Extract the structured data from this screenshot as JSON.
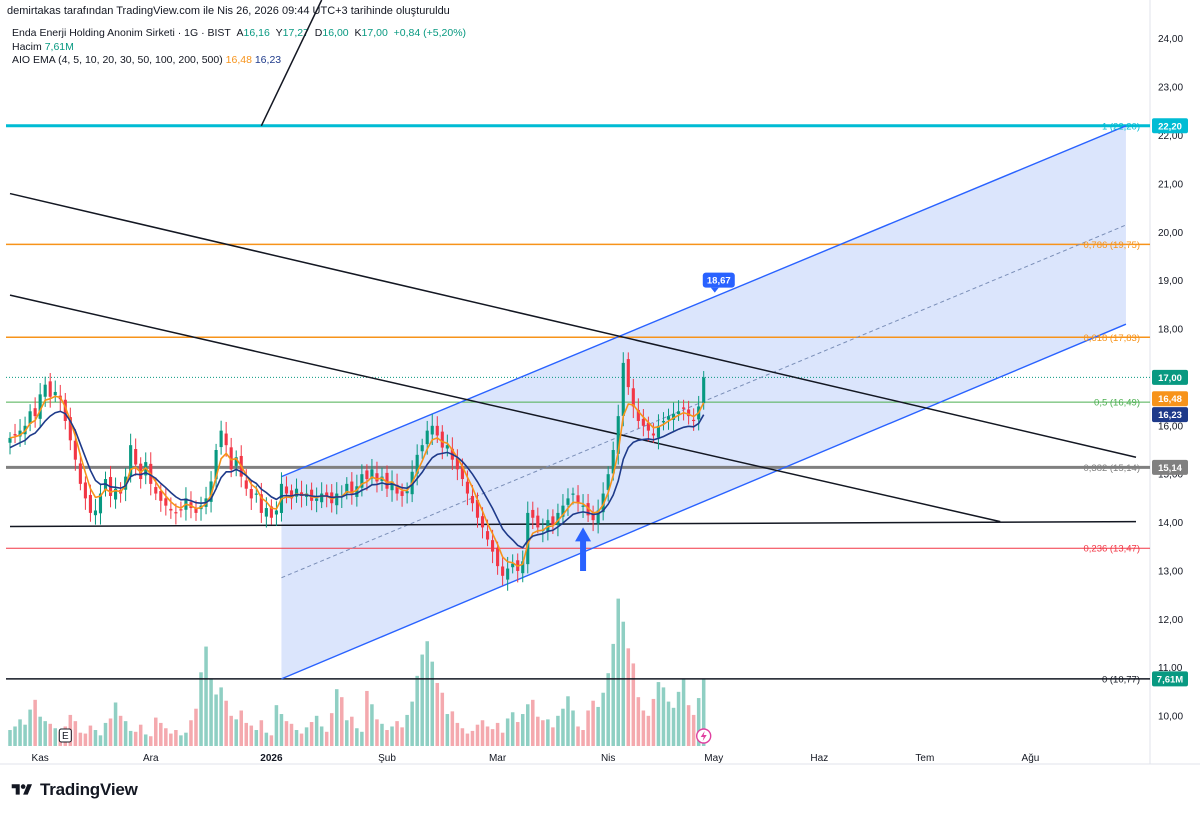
{
  "attribution": "demirtakas tarafından TradingView.com ile Nis 26, 2026 09:44 UTC+3 tarihinde oluşturuldu",
  "legend": {
    "symbol": "Enda Enerji Holding Anonim Sirketi · 1G · BIST",
    "open_label": "A",
    "open_value": "16,16",
    "high_label": "Y",
    "high_value": "17,27",
    "low_label": "D",
    "low_value": "16,00",
    "close_label": "K",
    "close_value": "17,00",
    "change": "+0,84 (+5,20%)",
    "volume_label": "Hacim",
    "volume_value": "7,61M",
    "ema_label": "AIO EMA (4, 5, 10, 20, 30, 50, 100, 200, 500)",
    "ema_fast": "16,48",
    "ema_slow": "16,23"
  },
  "brand": "TradingView",
  "colors": {
    "up": "#089981",
    "down": "#f23645",
    "up_vol": "#8fcfc3",
    "down_vol": "#f4a9ae",
    "channel": "#2962ff",
    "channel_fill": "#d5e0fc",
    "fib_cyan": "#00bcd4",
    "fib_orange": "#f7931a",
    "fib_green": "#4caf50",
    "fib_gray": "#808080",
    "fib_red": "#f23645",
    "fib_black": "#131722",
    "ema_fast": "#f7931a",
    "ema_slow": "#1e3a8a"
  },
  "chart_data": {
    "type": "candlestick",
    "ylim": [
      9.3,
      24.8
    ],
    "x_range": [
      0,
      224
    ],
    "price_ticks": [
      "24,00",
      "23,00",
      "22,00",
      "21,00",
      "20,00",
      "19,00",
      "18,00",
      "16,00",
      "15,00",
      "14,00",
      "13,00",
      "12,00",
      "11,00",
      "10,00"
    ],
    "price_tick_values": [
      24,
      23,
      22,
      21,
      20,
      19,
      18,
      16,
      15,
      14,
      13,
      12,
      11,
      10
    ],
    "x_labels": [
      {
        "label": "Kas",
        "i": 6
      },
      {
        "label": "Ara",
        "i": 28
      },
      {
        "label": "2026",
        "i": 52
      },
      {
        "label": "Şub",
        "i": 75
      },
      {
        "label": "Mar",
        "i": 97
      },
      {
        "label": "Nis",
        "i": 119
      },
      {
        "label": "May",
        "i": 140
      },
      {
        "label": "Haz",
        "i": 161
      },
      {
        "label": "Tem",
        "i": 182
      },
      {
        "label": "Ağu",
        "i": 203
      }
    ],
    "price_badges": [
      {
        "value": "22,20",
        "price": 22.2,
        "bg": "#00bcd4"
      },
      {
        "value": "17,00",
        "price": 17.0,
        "bg": "#089981"
      },
      {
        "value": "16,48",
        "price": 16.56,
        "bg": "#f7931a"
      },
      {
        "value": "16,23",
        "price": 16.23,
        "bg": "#1e3a8a"
      },
      {
        "value": "15,14",
        "price": 15.14,
        "bg": "#808080"
      },
      {
        "value": "7,61M",
        "price": 10.77,
        "bg": "#089981"
      }
    ],
    "fib_levels": [
      {
        "label": "1 (22,20)",
        "price": 22.2,
        "color": "#00bcd4",
        "width": 3
      },
      {
        "label": "0,786 (19,75)",
        "price": 19.75,
        "color": "#f7931a",
        "width": 1.5
      },
      {
        "label": "0,618 (17,83)",
        "price": 17.83,
        "color": "#f7931a",
        "width": 1.5
      },
      {
        "label": "0,5 (16,49)",
        "price": 16.49,
        "color": "#4caf50",
        "width": 1
      },
      {
        "label": "0,382 (15,14)",
        "price": 15.14,
        "color": "#808080",
        "width": 3
      },
      {
        "label": "0,236 (13,47)",
        "price": 13.47,
        "color": "#f23645",
        "width": 1
      },
      {
        "label": "0 (10,77)",
        "price": 10.77,
        "color": "#131722",
        "width": 1.5
      }
    ],
    "current_price": 17.0,
    "channel": {
      "upper": [
        [
          54,
          14.95
        ],
        [
          222,
          22.2
        ]
      ],
      "lower": [
        [
          54,
          10.77
        ],
        [
          222,
          18.1
        ]
      ],
      "mid": [
        [
          54,
          12.86
        ],
        [
          222,
          20.15
        ]
      ],
      "annotation": {
        "label": "18,67",
        "i": 141,
        "price": 19.0
      }
    },
    "trendlines": [
      {
        "from": [
          0,
          20.8
        ],
        "to": [
          224,
          15.35
        ]
      },
      {
        "from": [
          0,
          18.7
        ],
        "to": [
          197,
          14.02
        ]
      },
      {
        "from": [
          0,
          13.92
        ],
        "to": [
          224,
          14.02
        ]
      },
      {
        "from": [
          50,
          22.2
        ],
        "to": [
          62,
          24.8
        ]
      }
    ],
    "arrow": {
      "i": 114,
      "from": 13.0,
      "to": 13.9
    },
    "e_marker": {
      "label": "E",
      "i": 11
    },
    "closes": [
      15.75,
      15.8,
      15.9,
      16.0,
      16.3,
      16.2,
      16.65,
      16.85,
      16.6,
      16.7,
      16.55,
      16.1,
      15.7,
      15.3,
      14.8,
      14.5,
      14.2,
      14.25,
      14.6,
      14.9,
      14.55,
      14.7,
      14.6,
      14.95,
      15.6,
      15.2,
      14.9,
      15.25,
      14.8,
      14.6,
      14.45,
      14.35,
      14.25,
      14.2,
      14.25,
      14.5,
      14.3,
      14.2,
      14.35,
      14.5,
      14.85,
      15.5,
      15.9,
      15.6,
      15.1,
      15.35,
      14.95,
      14.7,
      14.5,
      14.6,
      14.2,
      14.3,
      14.1,
      14.25,
      14.8,
      14.6,
      14.5,
      14.7,
      14.55,
      14.6,
      14.45,
      14.5,
      14.6,
      14.55,
      14.4,
      14.6,
      14.55,
      14.8,
      14.6,
      14.75,
      15.0,
      14.9,
      15.1,
      14.85,
      14.95,
      14.7,
      14.85,
      14.6,
      14.55,
      14.65,
      15.05,
      15.4,
      15.6,
      15.9,
      16.0,
      15.8,
      15.55,
      15.6,
      15.3,
      15.1,
      14.9,
      14.6,
      14.4,
      14.1,
      13.9,
      13.65,
      13.4,
      13.1,
      12.9,
      13.05,
      13.15,
      13.0,
      13.2,
      14.2,
      14.1,
      13.9,
      13.85,
      14.05,
      13.95,
      14.2,
      14.35,
      14.5,
      14.6,
      14.4,
      14.35,
      14.15,
      14.05,
      14.25,
      14.6,
      15.0,
      15.5,
      16.2,
      17.3,
      16.8,
      16.4,
      16.1,
      16.0,
      15.9,
      15.8,
      16.0,
      16.1,
      16.2,
      16.25,
      16.3,
      16.35,
      16.2,
      16.1,
      16.4,
      17.0
    ],
    "ema_fast": [
      15.75,
      15.77,
      15.81,
      15.89,
      16.05,
      16.11,
      16.32,
      16.53,
      16.56,
      16.61,
      16.59,
      16.39,
      16.11,
      15.79,
      15.39,
      15.03,
      14.7,
      14.52,
      14.55,
      14.69,
      14.63,
      14.66,
      14.64,
      14.76,
      15.1,
      15.14,
      15.04,
      15.13,
      15.0,
      14.84,
      14.68,
      14.55,
      14.43,
      14.34,
      14.3,
      14.38,
      14.35,
      14.29,
      14.31,
      14.39,
      14.57,
      14.94,
      15.32,
      15.43,
      15.3,
      15.32,
      15.17,
      14.98,
      14.79,
      14.71,
      14.51,
      14.43,
      14.3,
      14.28,
      14.49,
      14.53,
      14.52,
      14.59,
      14.57,
      14.58,
      14.53,
      14.52,
      14.55,
      14.55,
      14.49,
      14.53,
      14.54,
      14.64,
      14.62,
      14.67,
      14.8,
      14.84,
      14.94,
      14.9,
      14.92,
      14.83,
      14.84,
      14.74,
      14.67,
      14.66,
      14.82,
      15.05,
      15.27,
      15.52,
      15.71,
      15.75,
      15.67,
      15.64,
      15.5,
      15.34,
      15.16,
      14.94,
      14.72,
      14.47,
      14.24,
      13.98,
      13.77,
      13.55,
      13.29,
      13.19,
      13.17,
      13.1,
      13.14,
      13.56,
      13.78,
      13.83,
      13.84,
      13.92,
      13.93,
      14.04,
      14.16,
      14.3,
      14.42,
      14.41,
      14.39,
      14.3,
      14.2,
      14.22,
      14.37,
      14.62,
      14.97,
      15.46,
      16.2,
      16.45,
      16.43,
      16.3,
      16.18,
      16.07,
      15.96,
      15.98,
      16.03,
      16.1,
      16.16,
      16.22,
      16.27,
      16.24,
      16.19,
      16.27,
      16.48
    ],
    "ema_slow": [
      15.55,
      15.6,
      15.65,
      15.7,
      15.8,
      15.85,
      15.97,
      16.1,
      16.2,
      16.27,
      16.3,
      16.25,
      16.1,
      15.9,
      15.62,
      15.35,
      15.08,
      14.87,
      14.79,
      14.8,
      14.74,
      14.73,
      14.71,
      14.76,
      14.95,
      15.0,
      14.99,
      15.03,
      14.98,
      14.91,
      14.81,
      14.72,
      14.62,
      14.53,
      14.47,
      14.48,
      14.45,
      14.41,
      14.4,
      14.41,
      14.49,
      14.7,
      14.93,
      15.05,
      15.05,
      15.1,
      15.05,
      14.97,
      14.87,
      14.81,
      14.69,
      14.62,
      14.53,
      14.48,
      14.55,
      14.56,
      14.55,
      14.58,
      14.57,
      14.57,
      14.55,
      14.54,
      14.55,
      14.55,
      14.52,
      14.53,
      14.53,
      14.58,
      14.58,
      14.6,
      14.67,
      14.71,
      14.78,
      14.79,
      14.82,
      14.79,
      14.8,
      14.76,
      14.72,
      14.71,
      14.78,
      14.91,
      15.04,
      15.2,
      15.34,
      15.41,
      15.43,
      15.45,
      15.41,
      15.35,
      15.26,
      15.14,
      15.0,
      14.84,
      14.66,
      14.48,
      14.29,
      14.08,
      13.87,
      13.74,
      13.64,
      13.53,
      13.48,
      13.63,
      13.72,
      13.75,
      13.77,
      13.82,
      13.84,
      13.91,
      13.99,
      14.08,
      14.17,
      14.2,
      14.22,
      14.2,
      14.17,
      14.18,
      14.25,
      14.38,
      14.57,
      14.86,
      15.31,
      15.55,
      15.66,
      15.7,
      15.72,
      15.73,
      15.71,
      15.74,
      15.78,
      15.83,
      15.88,
      15.93,
      15.97,
      15.99,
      15.98,
      16.05,
      16.23
    ],
    "volume_scale_max": 21.4,
    "volume": [
      1.8,
      2.2,
      3.0,
      2.4,
      4.1,
      5.2,
      3.3,
      2.8,
      2.5,
      2.0,
      1.6,
      2.2,
      3.5,
      2.8,
      1.5,
      1.4,
      2.3,
      1.8,
      1.2,
      2.6,
      3.1,
      4.9,
      3.4,
      2.8,
      1.7,
      1.6,
      2.4,
      1.3,
      1.1,
      3.2,
      2.6,
      2.0,
      1.4,
      1.8,
      1.2,
      1.5,
      2.9,
      4.2,
      8.3,
      11.2,
      7.5,
      5.8,
      6.6,
      5.1,
      3.4,
      3.0,
      4.0,
      2.6,
      2.3,
      1.8,
      2.9,
      1.5,
      1.2,
      4.6,
      3.6,
      2.8,
      2.5,
      1.8,
      1.4,
      2.1,
      2.7,
      3.4,
      2.2,
      1.6,
      3.7,
      6.4,
      5.5,
      2.9,
      3.3,
      2.0,
      1.6,
      6.2,
      4.7,
      3.0,
      2.5,
      1.8,
      2.2,
      2.8,
      2.1,
      3.5,
      5.0,
      7.9,
      10.3,
      11.8,
      9.5,
      7.1,
      6.0,
      3.6,
      3.9,
      2.6,
      2.0,
      1.4,
      1.7,
      2.4,
      2.9,
      2.2,
      1.9,
      2.6,
      1.5,
      3.1,
      3.8,
      2.7,
      3.6,
      4.7,
      5.2,
      3.3,
      2.9,
      3.0,
      2.1,
      3.4,
      4.2,
      5.6,
      4.0,
      2.2,
      1.8,
      4.0,
      5.1,
      4.4,
      6.0,
      8.2,
      11.5,
      16.6,
      14.0,
      11.0,
      9.3,
      5.5,
      4.0,
      3.4,
      5.3,
      7.2,
      6.6,
      5.0,
      4.3,
      6.1,
      7.6,
      4.6,
      3.5,
      5.4,
      7.6
    ]
  }
}
